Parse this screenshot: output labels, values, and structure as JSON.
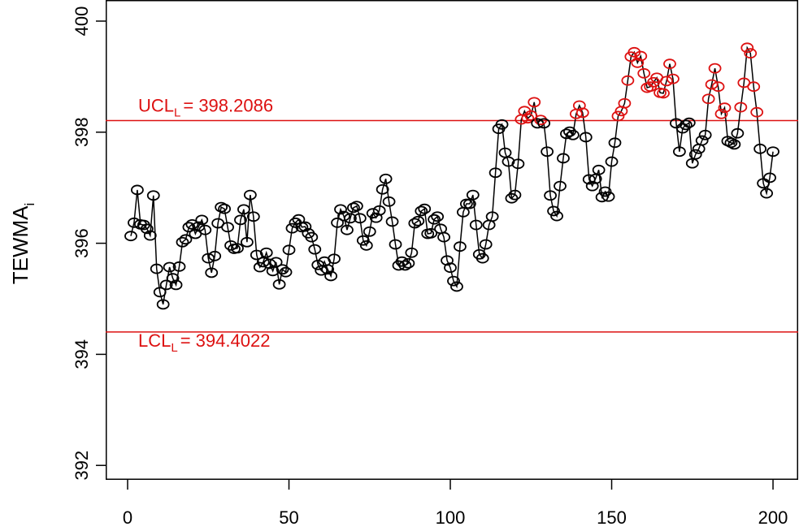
{
  "chart_data": {
    "type": "line",
    "ylabel": {
      "text": "TEWMA",
      "sub": "i"
    },
    "x": [
      1,
      2,
      3,
      4,
      5,
      6,
      7,
      8,
      9,
      10,
      11,
      12,
      13,
      14,
      15,
      16,
      17,
      18,
      19,
      20,
      21,
      22,
      23,
      24,
      25,
      26,
      27,
      28,
      29,
      30,
      31,
      32,
      33,
      34,
      35,
      36,
      37,
      38,
      39,
      40,
      41,
      42,
      43,
      44,
      45,
      46,
      47,
      48,
      49,
      50,
      51,
      52,
      53,
      54,
      55,
      56,
      57,
      58,
      59,
      60,
      61,
      62,
      63,
      64,
      65,
      66,
      67,
      68,
      69,
      70,
      71,
      72,
      73,
      74,
      75,
      76,
      77,
      78,
      79,
      80,
      81,
      82,
      83,
      84,
      85,
      86,
      87,
      88,
      89,
      90,
      91,
      92,
      93,
      94,
      95,
      96,
      97,
      98,
      99,
      100,
      101,
      102,
      103,
      104,
      105,
      106,
      107,
      108,
      109,
      110,
      111,
      112,
      113,
      114,
      115,
      116,
      117,
      118,
      119,
      120,
      121,
      122,
      123,
      124,
      125,
      126,
      127,
      128,
      129,
      130,
      131,
      132,
      133,
      134,
      135,
      136,
      137,
      138,
      139,
      140,
      141,
      142,
      143,
      144,
      145,
      146,
      147,
      148,
      149,
      150,
      151,
      152,
      153,
      154,
      155,
      156,
      157,
      158,
      159,
      160,
      161,
      162,
      163,
      164,
      165,
      166,
      167,
      168,
      169,
      170,
      171,
      172,
      173,
      174,
      175,
      176,
      177,
      178,
      179,
      180,
      181,
      182,
      183,
      184,
      185,
      186,
      187,
      188,
      189,
      190,
      191,
      192,
      193,
      194,
      195,
      196,
      197,
      198,
      199,
      200
    ],
    "series": [
      {
        "color": "#000000",
        "alert_color": "#dd1111",
        "values": [
          396.13,
          396.37,
          396.96,
          396.34,
          396.33,
          396.26,
          396.14,
          396.86,
          395.54,
          395.12,
          394.9,
          395.25,
          395.57,
          395.37,
          395.25,
          395.58,
          396.02,
          396.07,
          396.29,
          396.34,
          396.17,
          396.3,
          396.42,
          396.24,
          395.73,
          395.47,
          395.77,
          396.36,
          396.65,
          396.62,
          396.29,
          395.96,
          395.9,
          395.91,
          396.42,
          396.61,
          396.02,
          396.87,
          396.48,
          395.79,
          395.57,
          395.66,
          395.83,
          395.63,
          395.5,
          395.66,
          395.26,
          395.53,
          395.48,
          395.88,
          396.27,
          396.37,
          396.43,
          396.29,
          396.3,
          396.18,
          396.11,
          395.89,
          395.61,
          395.51,
          395.67,
          395.53,
          395.41,
          395.72,
          396.37,
          396.61,
          396.49,
          396.24,
          396.45,
          396.64,
          396.67,
          396.45,
          396.05,
          395.96,
          396.21,
          396.54,
          396.46,
          396.59,
          396.97,
          397.16,
          396.75,
          396.39,
          395.98,
          395.6,
          395.67,
          395.6,
          395.64,
          395.83,
          396.36,
          396.4,
          396.58,
          396.62,
          396.17,
          396.18,
          396.43,
          396.48,
          396.26,
          396.11,
          395.69,
          395.56,
          395.32,
          395.22,
          395.94,
          396.56,
          396.71,
          396.71,
          396.87,
          396.33,
          395.8,
          395.73,
          395.98,
          396.33,
          396.48,
          397.27,
          398.06,
          398.14,
          397.63,
          397.47,
          396.81,
          396.87,
          397.43,
          398.23,
          398.38,
          398.25,
          398.3,
          398.54,
          398.16,
          398.22,
          398.16,
          397.65,
          396.86,
          396.58,
          396.49,
          397.03,
          397.53,
          397.97,
          398.01,
          397.95,
          398.33,
          398.48,
          398.35,
          397.91,
          397.15,
          397.03,
          397.16,
          397.32,
          396.83,
          396.93,
          396.84,
          397.47,
          397.81,
          398.29,
          398.38,
          398.52,
          398.93,
          399.36,
          399.44,
          399.25,
          399.37,
          399.06,
          398.8,
          398.82,
          398.9,
          398.98,
          398.71,
          398.7,
          398.92,
          399.23,
          398.96,
          398.16,
          397.65,
          398.07,
          398.13,
          398.17,
          397.44,
          397.6,
          397.7,
          397.85,
          397.95,
          398.6,
          398.86,
          399.15,
          398.82,
          398.33,
          398.44,
          397.84,
          397.81,
          397.78,
          397.98,
          398.45,
          398.89,
          399.52,
          399.42,
          398.82,
          398.36,
          397.7,
          397.08,
          396.9,
          397.18,
          397.65
        ]
      }
    ],
    "limits": [
      {
        "name": "UCL",
        "sub": "L",
        "value": 398.2086,
        "label": "= 398.2086",
        "color": "#dd1111"
      },
      {
        "name": "LCL",
        "sub": "L",
        "value": 394.4022,
        "label": "= 394.4022",
        "color": "#dd1111"
      }
    ],
    "xlim": [
      -6.8,
      207.8
    ],
    "ylim": [
      391.74,
      400.38
    ],
    "xticks": [
      0,
      50,
      100,
      150,
      200
    ],
    "yticks": [
      392,
      394,
      396,
      398,
      400
    ]
  }
}
